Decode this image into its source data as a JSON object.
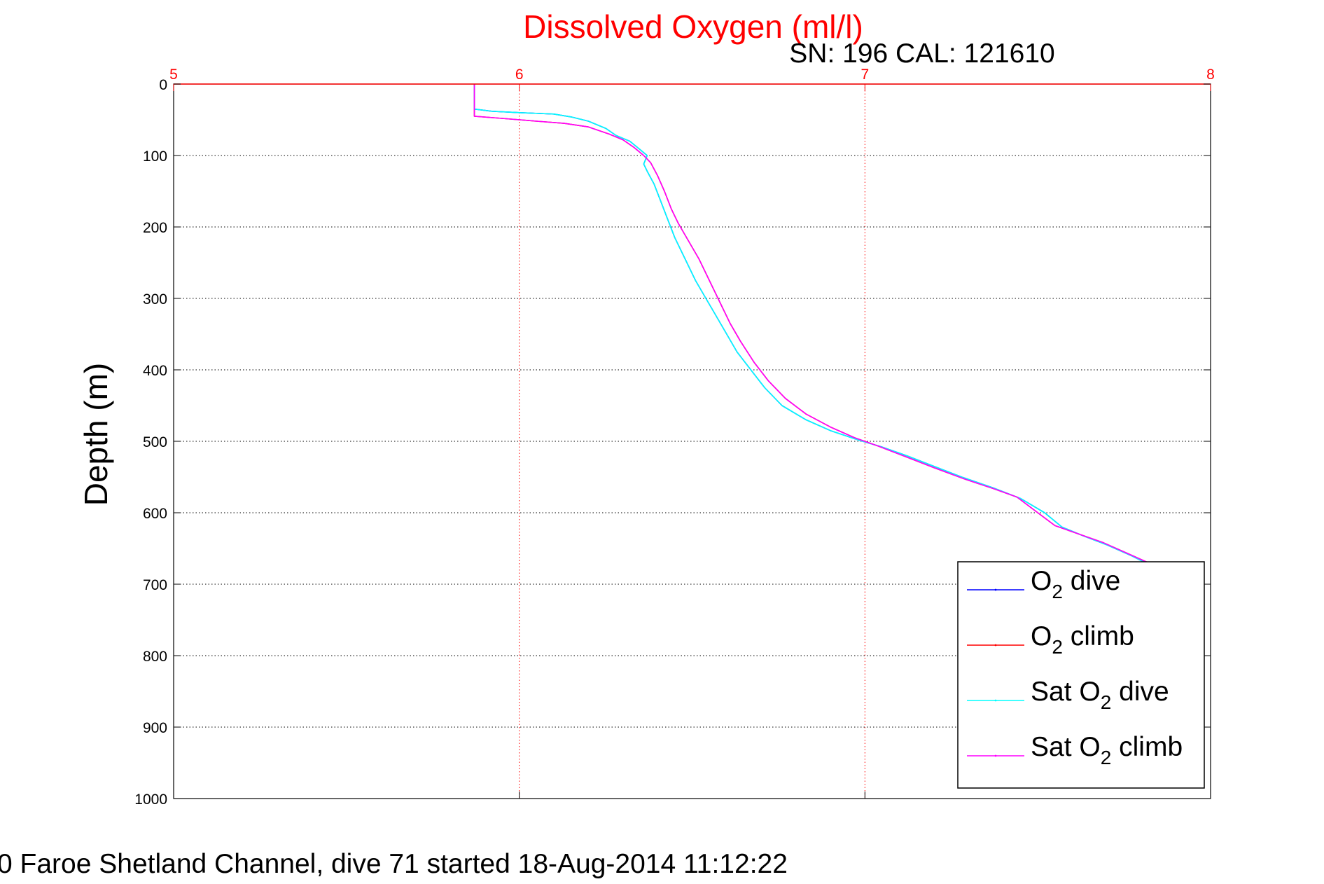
{
  "chart_data": {
    "type": "line",
    "title": "Dissolved Oxygen (ml/l)",
    "subtitle": "SN: 196  CAL: 121610",
    "ylabel": "Depth (m)",
    "footer": "0 Faroe Shetland Channel, dive 71 started 18-Aug-2014 11:12:22",
    "xlim": [
      5,
      8
    ],
    "ylim": [
      0,
      1000
    ],
    "y_inverted": true,
    "x_axis_position": "top",
    "grid": true,
    "x_ticks": [
      "5",
      "6",
      "7",
      "8"
    ],
    "y_ticks": [
      "0",
      "100",
      "200",
      "300",
      "400",
      "500",
      "600",
      "700",
      "800",
      "900",
      "1000"
    ],
    "legend_position": "bottom-right",
    "series": [
      {
        "legend_main": "O",
        "legend_sub": "2",
        "legend_tail": " dive",
        "color": "#0000ff",
        "draw_order": 0,
        "points": [
          [
            5.87,
            0
          ],
          [
            5.87,
            35
          ],
          [
            5.92,
            38
          ],
          [
            6.0,
            40
          ],
          [
            6.1,
            42
          ],
          [
            6.15,
            46
          ],
          [
            6.2,
            52
          ],
          [
            6.25,
            62
          ],
          [
            6.28,
            72
          ],
          [
            6.32,
            80
          ],
          [
            6.35,
            92
          ],
          [
            6.37,
            100
          ],
          [
            6.36,
            112
          ],
          [
            6.37,
            122
          ],
          [
            6.39,
            140
          ],
          [
            6.41,
            165
          ],
          [
            6.43,
            190
          ],
          [
            6.45,
            215
          ],
          [
            6.48,
            245
          ],
          [
            6.51,
            275
          ],
          [
            6.54,
            300
          ],
          [
            6.57,
            325
          ],
          [
            6.6,
            350
          ],
          [
            6.63,
            375
          ],
          [
            6.67,
            400
          ],
          [
            6.71,
            425
          ],
          [
            6.76,
            450
          ],
          [
            6.83,
            470
          ],
          [
            6.9,
            485
          ],
          [
            6.98,
            498
          ],
          [
            7.05,
            508
          ],
          [
            7.12,
            520
          ],
          [
            7.2,
            535
          ],
          [
            7.28,
            550
          ],
          [
            7.37,
            565
          ],
          [
            7.45,
            580
          ],
          [
            7.52,
            600
          ],
          [
            7.57,
            620
          ],
          [
            7.63,
            632
          ],
          [
            7.7,
            645
          ],
          [
            7.77,
            660
          ],
          [
            7.82,
            672
          ]
        ]
      },
      {
        "legend_main": "O",
        "legend_sub": "2",
        "legend_tail": " climb",
        "color": "#ff0000",
        "draw_order": 1,
        "points": [
          [
            5.87,
            0
          ],
          [
            5.87,
            45
          ],
          [
            5.95,
            48
          ],
          [
            6.05,
            52
          ],
          [
            6.13,
            55
          ],
          [
            6.2,
            60
          ],
          [
            6.26,
            70
          ],
          [
            6.3,
            78
          ],
          [
            6.33,
            88
          ],
          [
            6.36,
            100
          ],
          [
            6.38,
            110
          ],
          [
            6.4,
            128
          ],
          [
            6.42,
            150
          ],
          [
            6.44,
            175
          ],
          [
            6.46,
            195
          ],
          [
            6.49,
            220
          ],
          [
            6.52,
            245
          ],
          [
            6.55,
            275
          ],
          [
            6.58,
            305
          ],
          [
            6.61,
            335
          ],
          [
            6.64,
            360
          ],
          [
            6.68,
            390
          ],
          [
            6.72,
            415
          ],
          [
            6.77,
            440
          ],
          [
            6.83,
            462
          ],
          [
            6.9,
            480
          ],
          [
            6.97,
            495
          ],
          [
            7.04,
            507
          ],
          [
            7.12,
            522
          ],
          [
            7.2,
            537
          ],
          [
            7.29,
            553
          ],
          [
            7.37,
            566
          ],
          [
            7.44,
            578
          ],
          [
            7.5,
            600
          ],
          [
            7.55,
            618
          ],
          [
            7.62,
            630
          ],
          [
            7.69,
            642
          ],
          [
            7.76,
            657
          ],
          [
            7.82,
            670
          ]
        ]
      },
      {
        "legend_main": "Sat O",
        "legend_sub": "2",
        "legend_tail": " dive",
        "color": "#00ffff",
        "draw_order": 2,
        "points": [
          [
            5.87,
            0
          ],
          [
            5.87,
            35
          ],
          [
            5.92,
            38
          ],
          [
            6.0,
            40
          ],
          [
            6.1,
            42
          ],
          [
            6.15,
            46
          ],
          [
            6.2,
            52
          ],
          [
            6.25,
            62
          ],
          [
            6.28,
            72
          ],
          [
            6.32,
            80
          ],
          [
            6.35,
            92
          ],
          [
            6.37,
            100
          ],
          [
            6.36,
            112
          ],
          [
            6.37,
            122
          ],
          [
            6.39,
            140
          ],
          [
            6.41,
            165
          ],
          [
            6.43,
            190
          ],
          [
            6.45,
            215
          ],
          [
            6.48,
            245
          ],
          [
            6.51,
            275
          ],
          [
            6.54,
            300
          ],
          [
            6.57,
            325
          ],
          [
            6.6,
            350
          ],
          [
            6.63,
            375
          ],
          [
            6.67,
            400
          ],
          [
            6.71,
            425
          ],
          [
            6.76,
            450
          ],
          [
            6.83,
            470
          ],
          [
            6.9,
            485
          ],
          [
            6.98,
            498
          ],
          [
            7.05,
            508
          ],
          [
            7.12,
            520
          ],
          [
            7.2,
            535
          ],
          [
            7.28,
            550
          ],
          [
            7.37,
            565
          ],
          [
            7.45,
            580
          ],
          [
            7.52,
            600
          ],
          [
            7.57,
            620
          ],
          [
            7.63,
            632
          ],
          [
            7.7,
            645
          ],
          [
            7.77,
            660
          ],
          [
            7.82,
            672
          ]
        ]
      },
      {
        "legend_main": "Sat O",
        "legend_sub": "2",
        "legend_tail": " climb",
        "color": "#ff00ff",
        "draw_order": 3,
        "points": [
          [
            5.87,
            0
          ],
          [
            5.87,
            45
          ],
          [
            5.95,
            48
          ],
          [
            6.05,
            52
          ],
          [
            6.13,
            55
          ],
          [
            6.2,
            60
          ],
          [
            6.26,
            70
          ],
          [
            6.3,
            78
          ],
          [
            6.33,
            88
          ],
          [
            6.36,
            100
          ],
          [
            6.38,
            110
          ],
          [
            6.4,
            128
          ],
          [
            6.42,
            150
          ],
          [
            6.44,
            175
          ],
          [
            6.46,
            195
          ],
          [
            6.49,
            220
          ],
          [
            6.52,
            245
          ],
          [
            6.55,
            275
          ],
          [
            6.58,
            305
          ],
          [
            6.61,
            335
          ],
          [
            6.64,
            360
          ],
          [
            6.68,
            390
          ],
          [
            6.72,
            415
          ],
          [
            6.77,
            440
          ],
          [
            6.83,
            462
          ],
          [
            6.9,
            480
          ],
          [
            6.97,
            495
          ],
          [
            7.04,
            507
          ],
          [
            7.12,
            522
          ],
          [
            7.2,
            537
          ],
          [
            7.29,
            553
          ],
          [
            7.37,
            566
          ],
          [
            7.44,
            578
          ],
          [
            7.5,
            600
          ],
          [
            7.55,
            618
          ],
          [
            7.62,
            630
          ],
          [
            7.69,
            642
          ],
          [
            7.76,
            657
          ],
          [
            7.82,
            670
          ]
        ]
      }
    ]
  },
  "colors": {
    "title": "#ff0000",
    "x_ticks": "#ff0000",
    "axis": "#000000",
    "x_grid": "#ff0000",
    "y_grid": "#000000"
  }
}
